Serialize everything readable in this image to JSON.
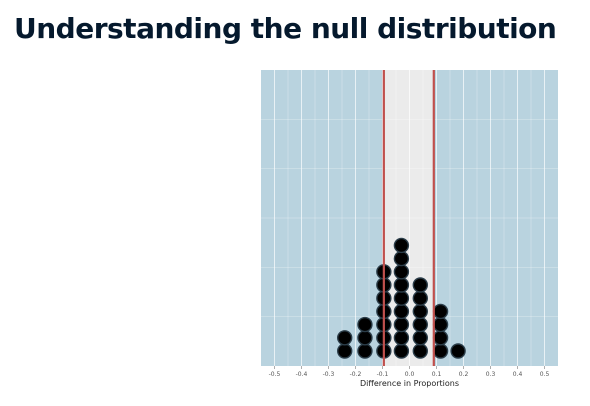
{
  "slide": {
    "title": "Understanding the null distribution"
  },
  "chart_data": {
    "type": "scatter",
    "subtype": "dotplot",
    "xlabel": "Difference in Proportions",
    "ylabel": "",
    "xlim": [
      -0.55,
      0.55
    ],
    "x_ticks": [
      -0.5,
      -0.4,
      -0.3,
      -0.2,
      -0.1,
      0.0,
      0.1,
      0.2,
      0.3,
      0.4,
      0.5
    ],
    "x_tick_labels": [
      "-0.5",
      "-0.4",
      "-0.3",
      "-0.2",
      "-0.1",
      "0.0",
      "0.1",
      "0.2",
      "0.3",
      "0.4",
      "0.5"
    ],
    "grid": true,
    "legend": "none",
    "shaded_tails": {
      "lower_bound": -0.095,
      "upper_bound": 0.09,
      "tail_color": "#b9d3df",
      "center_color": "#ebebeb"
    },
    "cutoff_lines": {
      "x": [
        -0.095,
        0.09
      ],
      "color": "#c0504d"
    },
    "dot_color": "#000000",
    "dot_outline_color": "#2b3d49",
    "bins": [
      {
        "x": -0.24,
        "count": 2
      },
      {
        "x": -0.165,
        "count": 3
      },
      {
        "x": -0.095,
        "count": 7
      },
      {
        "x": -0.03,
        "count": 9
      },
      {
        "x": 0.04,
        "count": 6
      },
      {
        "x": 0.115,
        "count": 4
      },
      {
        "x": 0.18,
        "count": 1
      }
    ]
  }
}
